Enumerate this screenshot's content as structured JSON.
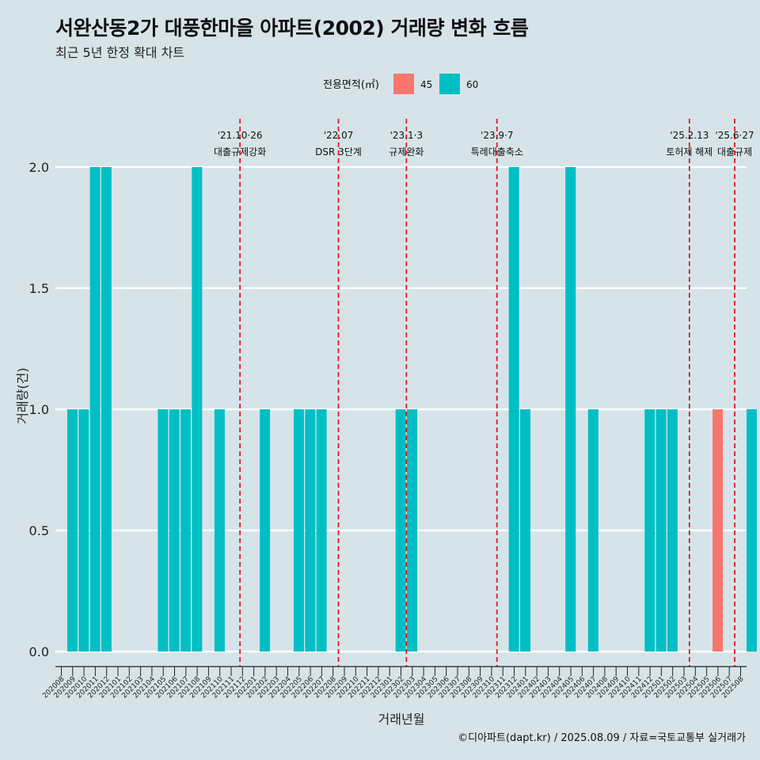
{
  "title": "서완산동2가 대풍한마을 아파트(2002) 거래량 변화 흐름",
  "subtitle": "최근 5년 한정 확대 차트",
  "caption": "©디아파트(dapt.kr) / 2025.08.09 / 자료=국토교통부 실거래가",
  "colors": {
    "background": "#d6e4ea",
    "grid": "#ffffff",
    "event_line": "#e31a1c",
    "series_45": "#f8766d",
    "series_60": "#00bfc4"
  },
  "chart_data": {
    "type": "bar",
    "stacked": true,
    "xlabel": "거래년월",
    "ylabel": "거래량(건)",
    "ylim": [
      0,
      2.1
    ],
    "yticks": [
      0.0,
      0.5,
      1.0,
      1.5,
      2.0
    ],
    "ytick_labels": [
      "0.0",
      "0.5",
      "1.0",
      "1.5",
      "2.0"
    ],
    "grid": true,
    "legend": {
      "title": "전용면적(㎡)",
      "position": "top",
      "entries": [
        {
          "label": "45",
          "color": "#f8766d"
        },
        {
          "label": "60",
          "color": "#00bfc4"
        }
      ]
    },
    "categories": [
      "202008",
      "202009",
      "202010",
      "202011",
      "202012",
      "202101",
      "202102",
      "202103",
      "202104",
      "202105",
      "202106",
      "202107",
      "202108",
      "202109",
      "202110",
      "202111",
      "202112",
      "202201",
      "202202",
      "202203",
      "202204",
      "202205",
      "202206",
      "202207",
      "202208",
      "202209",
      "202210",
      "202211",
      "202212",
      "202301",
      "202302",
      "202303",
      "202304",
      "202305",
      "202306",
      "202307",
      "202308",
      "202309",
      "202310",
      "202311",
      "202312",
      "202401",
      "202402",
      "202403",
      "202404",
      "202405",
      "202406",
      "202407",
      "202408",
      "202409",
      "202410",
      "202411",
      "202412",
      "202501",
      "202502",
      "202503",
      "202504",
      "202505",
      "202506",
      "202507",
      "202508"
    ],
    "series": [
      {
        "name": "45",
        "color": "#f8766d",
        "values": [
          0,
          0,
          0,
          0,
          0,
          0,
          0,
          0,
          0,
          0,
          0,
          0,
          0,
          0,
          0,
          0,
          0,
          0,
          0,
          0,
          0,
          0,
          0,
          0,
          0,
          0,
          0,
          0,
          0,
          0,
          0,
          0,
          0,
          0,
          0,
          0,
          0,
          0,
          0,
          0,
          0,
          0,
          0,
          0,
          0,
          0,
          0,
          0,
          0,
          0,
          0,
          0,
          0,
          0,
          0,
          0,
          0,
          1,
          0,
          0,
          0
        ]
      },
      {
        "name": "60",
        "color": "#00bfc4",
        "values": [
          1,
          1,
          2,
          2,
          0,
          0,
          0,
          0,
          1,
          1,
          1,
          2,
          0,
          1,
          0,
          0,
          0,
          1,
          0,
          0,
          1,
          1,
          1,
          0,
          0,
          0,
          0,
          0,
          0,
          1,
          1,
          0,
          0,
          0,
          0,
          0,
          0,
          0,
          0,
          2,
          1,
          0,
          0,
          0,
          2,
          0,
          1,
          0,
          0,
          0,
          0,
          1,
          1,
          1,
          0,
          0,
          0,
          0,
          0,
          0,
          1
        ]
      }
    ],
    "events": [
      {
        "date": "202110.8",
        "label_top": "'21.10·26",
        "label_bottom": "대출규제강화"
      },
      {
        "date": "202207.5",
        "label_top": "'22.07",
        "label_bottom": "DSR 3단계"
      },
      {
        "date": "202301.5",
        "label_top": "'23.1·3",
        "label_bottom": "규제완화"
      },
      {
        "date": "202309.5",
        "label_top": "'23.9·7",
        "label_bottom": "특례대출축소"
      },
      {
        "date": "202502.5",
        "label_top": "'25.2.13",
        "label_bottom": "토허제 해제"
      },
      {
        "date": "202506.5",
        "label_top": "'25.6·27",
        "label_bottom": "대출규제"
      }
    ]
  }
}
